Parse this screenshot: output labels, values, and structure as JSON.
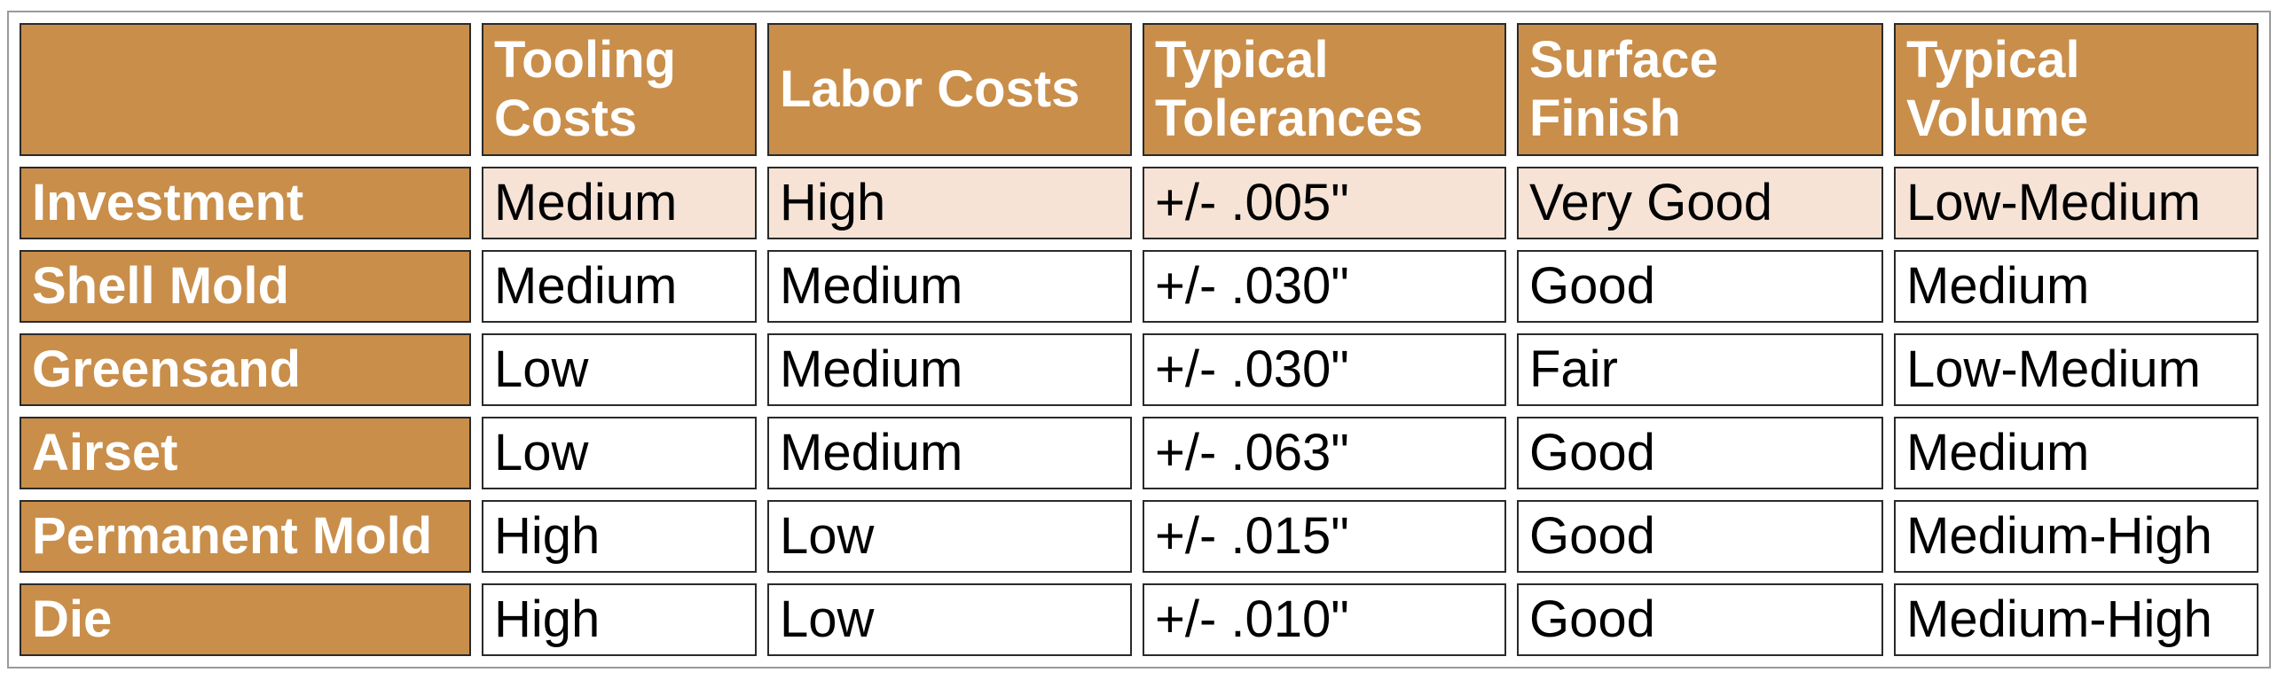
{
  "table": {
    "columns": [
      "Tooling Costs",
      "Labor Costs",
      "Typical Tolerances",
      "Surface Finish",
      "Typical Volume"
    ],
    "rows": [
      {
        "label": "Investment",
        "cells": [
          "Medium",
          "High",
          "+/- .005\"",
          "Very Good",
          "Low-Medium"
        ]
      },
      {
        "label": "Shell Mold",
        "cells": [
          "Medium",
          "Medium",
          "+/- .030\"",
          "Good",
          "Medium"
        ]
      },
      {
        "label": "Greensand",
        "cells": [
          "Low",
          "Medium",
          "+/- .030\"",
          "Fair",
          "Low-Medium"
        ]
      },
      {
        "label": "Airset",
        "cells": [
          "Low",
          "Medium",
          "+/- .063\"",
          "Good",
          "Medium"
        ]
      },
      {
        "label": "Permanent Mold",
        "cells": [
          "High",
          "Low",
          "+/- .015\"",
          "Good",
          "Medium-High"
        ]
      },
      {
        "label": "Die",
        "cells": [
          "High",
          "Low",
          "+/- .010\"",
          "Good",
          "Medium-High"
        ]
      }
    ]
  }
}
